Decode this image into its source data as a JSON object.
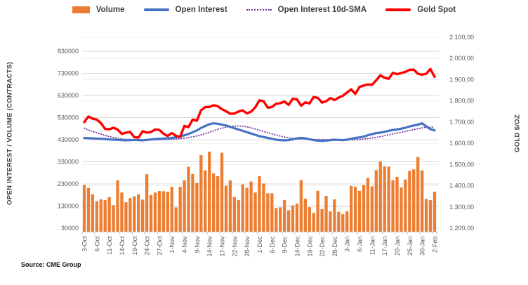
{
  "source": "Source: CME Group",
  "legend": [
    {
      "label": "Volume",
      "color": "#ED7D31",
      "type": "bar"
    },
    {
      "label": "Open Interest",
      "color": "#4472C4",
      "type": "line"
    },
    {
      "label": "Open Interest 10d-SMA",
      "color": "#7030A0",
      "type": "dotted-line"
    },
    {
      "label": "Gold Spot",
      "color": "#FF0000",
      "type": "line"
    }
  ],
  "axes": {
    "left": {
      "title": "OPEN INTEREST / VOLUME (CONTRACTS)",
      "ticks": [
        "830000",
        "730000",
        "630000",
        "530000",
        "430000",
        "330000",
        "230000",
        "130000",
        "30000"
      ]
    },
    "right": {
      "title": "GOLD $/OZ",
      "ticks": [
        "2.100,00",
        "2.000,00",
        "1.900,00",
        "1.800,00",
        "1.700,00",
        "1.600,00",
        "1.500,00",
        "1.400,00",
        "1.300,00",
        "1.200,00"
      ]
    }
  },
  "chart_data": {
    "type": "combo",
    "grid": "horizontal",
    "legend_position": "top",
    "label_every": 3,
    "left_axis": {
      "min": 30000,
      "max": 830000,
      "tick_step": 100000
    },
    "right_axis": {
      "min": 1200,
      "max": 2100,
      "tick_step": 100
    },
    "categories": [
      "3-Oct",
      "4-Oct",
      "5-Oct",
      "6-Oct",
      "7-Oct",
      "10-Oct",
      "11-Oct",
      "12-Oct",
      "13-Oct",
      "14-Oct",
      "17-Oct",
      "18-Oct",
      "19-Oct",
      "20-Oct",
      "21-Oct",
      "24-Oct",
      "25-Oct",
      "26-Oct",
      "27-Oct",
      "28-Oct",
      "31-Oct",
      "1-Nov",
      "2-Nov",
      "3-Nov",
      "4-Nov",
      "7-Nov",
      "8-Nov",
      "9-Nov",
      "10-Nov",
      "11-Nov",
      "14-Nov",
      "15-Nov",
      "16-Nov",
      "17-Nov",
      "18-Nov",
      "21-Nov",
      "22-Nov",
      "23-Nov",
      "25-Nov",
      "28-Nov",
      "29-Nov",
      "30-Nov",
      "1-Dec",
      "2-Dec",
      "5-Dec",
      "6-Dec",
      "7-Dec",
      "8-Dec",
      "9-Dec",
      "12-Dec",
      "13-Dec",
      "14-Dec",
      "15-Dec",
      "16-Dec",
      "19-Dec",
      "20-Dec",
      "21-Dec",
      "22-Dec",
      "23-Dec",
      "27-Dec",
      "28-Dec",
      "29-Dec",
      "30-Dec",
      "3-Jan",
      "4-Jan",
      "5-Jan",
      "6-Jan",
      "9-Jan",
      "10-Jan",
      "11-Jan",
      "12-Jan",
      "13-Jan",
      "17-Jan",
      "18-Jan",
      "19-Jan",
      "20-Jan",
      "23-Jan",
      "24-Jan",
      "25-Jan",
      "26-Jan",
      "27-Jan",
      "30-Jan",
      "31-Jan",
      "1-Feb",
      "2-Feb"
    ],
    "series": [
      {
        "name": "Volume",
        "type": "bar",
        "axis": "left",
        "color": "#ED7D31",
        "values": [
          225000,
          212000,
          183000,
          152000,
          160000,
          157000,
          170000,
          134000,
          246000,
          191000,
          147000,
          166000,
          174000,
          183000,
          159000,
          274000,
          180000,
          191000,
          198000,
          197000,
          195000,
          217000,
          124000,
          217000,
          246000,
          308000,
          275000,
          235000,
          360000,
          291000,
          376000,
          277000,
          265000,
          371000,
          222000,
          246000,
          170000,
          157000,
          228000,
          212000,
          241000,
          191000,
          265000,
          232000,
          188000,
          188000,
          121000,
          124000,
          157000,
          111000,
          133000,
          141000,
          247000,
          163000,
          125000,
          99000,
          199000,
          116000,
          176000,
          106000,
          160000,
          104000,
          93000,
          106000,
          221000,
          217000,
          199000,
          225000,
          257000,
          219000,
          292000,
          332000,
          310000,
          308000,
          247000,
          262000,
          214000,
          250000,
          289000,
          296000,
          352000,
          291000,
          162000,
          157000,
          195000
        ]
      },
      {
        "name": "Open Interest",
        "type": "line",
        "axis": "left",
        "color": "#4472C4",
        "values": [
          438000,
          437000,
          436000,
          435000,
          434000,
          433000,
          431000,
          430000,
          429000,
          428000,
          427000,
          428000,
          429000,
          428000,
          427000,
          429000,
          431000,
          433000,
          434000,
          435000,
          436000,
          438000,
          441000,
          444000,
          450000,
          456000,
          464000,
          472000,
          483000,
          492000,
          500000,
          504000,
          502000,
          498000,
          494000,
          488000,
          482000,
          476000,
          470000,
          464000,
          458000,
          452000,
          446000,
          442000,
          438000,
          434000,
          430000,
          428000,
          427000,
          428000,
          432000,
          436000,
          438000,
          436000,
          432000,
          428000,
          426000,
          425000,
          426000,
          428000,
          430000,
          429000,
          428000,
          430000,
          434000,
          438000,
          440000,
          444000,
          450000,
          455000,
          460000,
          462000,
          466000,
          470000,
          474000,
          476000,
          480000,
          484000,
          490000,
          494000,
          498000,
          504000,
          490000,
          478000,
          472000
        ]
      },
      {
        "name": "Open Interest 10d-SMA",
        "type": "line",
        "dash": "dotted",
        "axis": "left",
        "color": "#7030A0",
        "values": [
          481800,
          474500,
          467600,
          461100,
          455000,
          449300,
          444200,
          439800,
          436100,
          433100,
          432000,
          431100,
          430400,
          429700,
          429000,
          428600,
          428600,
          428900,
          429400,
          430100,
          431000,
          432000,
          433200,
          434800,
          437100,
          439800,
          443100,
          447000,
          451900,
          457600,
          464000,
          470600,
          476700,
          482100,
          486500,
          489700,
          491500,
          491900,
          490600,
          487800,
          483600,
          478400,
          472800,
          467200,
          461600,
          456200,
          451000,
          446200,
          441900,
          438300,
          435700,
          434100,
          433300,
          432700,
          432100,
          431500,
          431100,
          430800,
          430700,
          430700,
          430500,
          429800,
          428800,
          428200,
          428400,
          429400,
          430800,
          432700,
          435100,
          437800,
          440800,
          444100,
          447900,
          451900,
          455900,
          459700,
          463700,
          467700,
          471700,
          475600,
          479400,
          483600,
          486000,
          486800,
          486600
        ]
      },
      {
        "name": "Gold Spot",
        "type": "line",
        "axis": "right",
        "color": "#FF0000",
        "values": [
          1700,
          1726,
          1716,
          1712,
          1695,
          1668,
          1666,
          1673,
          1665,
          1644,
          1650,
          1653,
          1629,
          1627,
          1657,
          1650,
          1653,
          1665,
          1663,
          1645,
          1634,
          1648,
          1635,
          1630,
          1682,
          1676,
          1712,
          1707,
          1755,
          1771,
          1771,
          1779,
          1775,
          1761,
          1751,
          1739,
          1740,
          1750,
          1755,
          1741,
          1749,
          1769,
          1803,
          1798,
          1768,
          1771,
          1786,
          1789,
          1797,
          1781,
          1810,
          1807,
          1777,
          1793,
          1788,
          1818,
          1814,
          1792,
          1798,
          1813,
          1804,
          1815,
          1824,
          1839,
          1854,
          1833,
          1866,
          1872,
          1877,
          1876,
          1897,
          1920,
          1909,
          1904,
          1932,
          1926,
          1931,
          1937,
          1946,
          1947,
          1928,
          1923,
          1928,
          1950,
          1913
        ]
      }
    ]
  }
}
